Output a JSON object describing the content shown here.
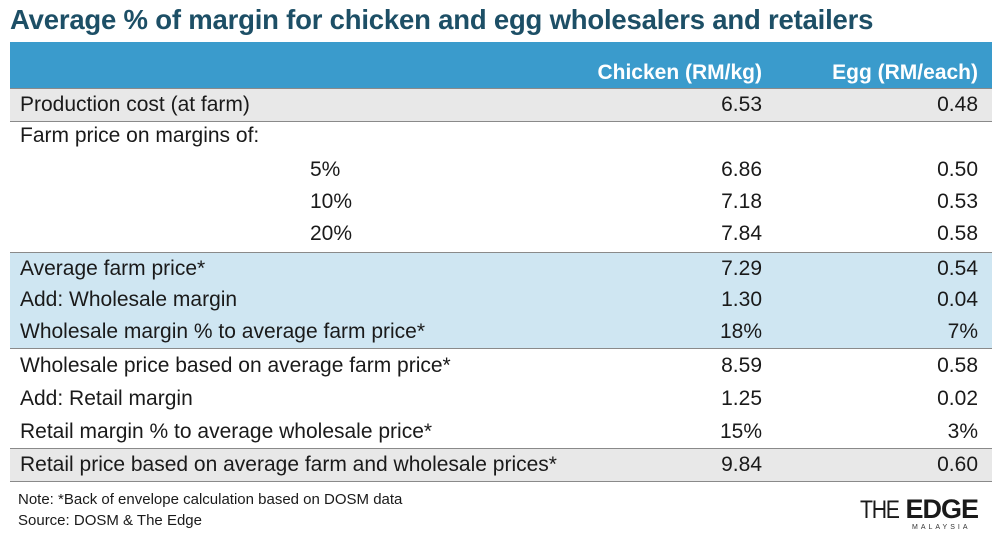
{
  "title": "Average % of margin for chicken and egg wholesalers and retailers",
  "columns": [
    "Chicken (RM/kg)",
    "Egg (RM/each)"
  ],
  "rows": [
    {
      "label": "Production cost (at farm)",
      "chicken": "6.53",
      "egg": "0.48"
    },
    {
      "label": "Farm price on margins of:",
      "chicken": "",
      "egg": ""
    },
    {
      "label": "5%",
      "chicken": "6.86",
      "egg": "0.50"
    },
    {
      "label": "10%",
      "chicken": "7.18",
      "egg": "0.53"
    },
    {
      "label": "20%",
      "chicken": "7.84",
      "egg": "0.58"
    },
    {
      "label": "Average farm price*",
      "chicken": "7.29",
      "egg": "0.54"
    },
    {
      "label": "Add: Wholesale margin",
      "chicken": "1.30",
      "egg": "0.04"
    },
    {
      "label": "Wholesale margin % to average farm price*",
      "chicken": "18%",
      "egg": "7%"
    },
    {
      "label": "Wholesale price based on average farm price*",
      "chicken": "8.59",
      "egg": "0.58"
    },
    {
      "label": "Add: Retail margin",
      "chicken": "1.25",
      "egg": "0.02"
    },
    {
      "label": "Retail margin % to average wholesale price*",
      "chicken": "15%",
      "egg": "3%"
    },
    {
      "label": "Retail price based on average farm and wholesale prices*",
      "chicken": "9.84",
      "egg": "0.60"
    }
  ],
  "note": "Note: *Back of envelope calculation based on DOSM data",
  "source": "Source: DOSM & The Edge",
  "logo": {
    "the": "THE",
    "edge": "EDGE",
    "sub": "MALAYSIA"
  },
  "colors": {
    "title": "#1d4f66",
    "header": "#3a9bcc",
    "blue_band": "#cfe6f2",
    "gray_band": "#e8e8e8"
  }
}
